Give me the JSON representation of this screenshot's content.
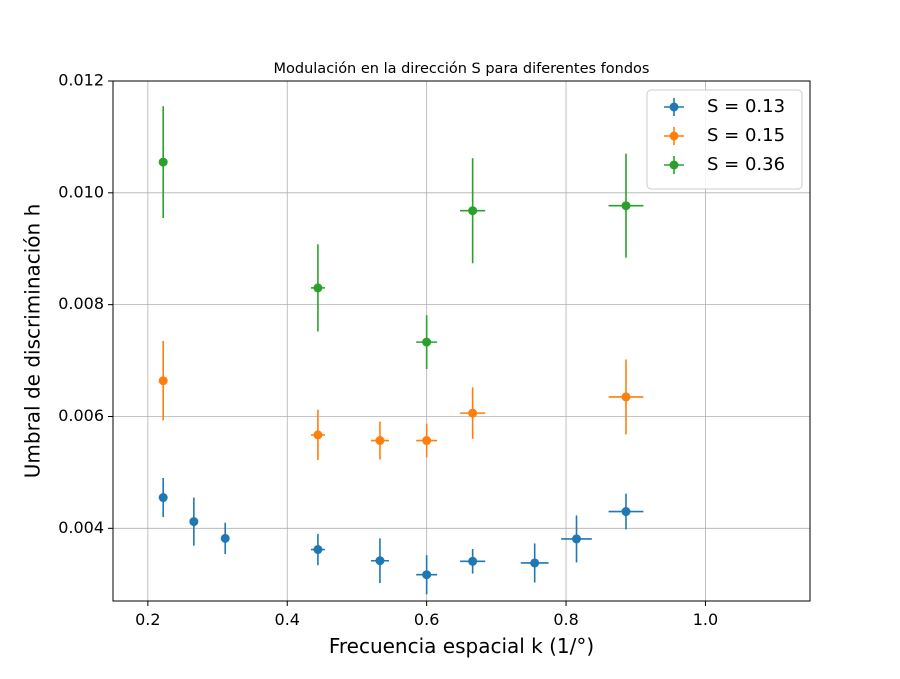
{
  "chart_data": {
    "type": "scatter",
    "title": "Modulación en la dirección S para diferentes fondos",
    "xlabel": "Frecuencia espacial k (1/°)",
    "ylabel": "Umbral de discriminación h",
    "xlim": [
      0.15,
      1.15
    ],
    "ylim": [
      0.0027,
      0.012
    ],
    "xticks": [
      0.2,
      0.4,
      0.6,
      0.8,
      1.0
    ],
    "xtick_labels": [
      "0.2",
      "0.4",
      "0.6",
      "0.8",
      "1.0"
    ],
    "yticks": [
      0.004,
      0.006,
      0.008,
      0.01,
      0.012
    ],
    "ytick_labels": [
      "0.004",
      "0.006",
      "0.008",
      "0.010",
      "0.012"
    ],
    "grid": true,
    "legend_position": "top-right",
    "series": [
      {
        "name": "S = 0.13",
        "color": "#1f77b4",
        "points": [
          {
            "x": 0.222,
            "y": 0.00455,
            "xerr": 0.0,
            "yerr": 0.00035
          },
          {
            "x": 0.266,
            "y": 0.00412,
            "xerr": 0.0,
            "yerr": 0.00043
          },
          {
            "x": 0.311,
            "y": 0.00382,
            "xerr": 0.005,
            "yerr": 0.00028
          },
          {
            "x": 0.444,
            "y": 0.00362,
            "xerr": 0.01,
            "yerr": 0.00028
          },
          {
            "x": 0.533,
            "y": 0.00342,
            "xerr": 0.013,
            "yerr": 0.0004
          },
          {
            "x": 0.6,
            "y": 0.00317,
            "xerr": 0.015,
            "yerr": 0.00035
          },
          {
            "x": 0.666,
            "y": 0.00341,
            "xerr": 0.018,
            "yerr": 0.00022
          },
          {
            "x": 0.755,
            "y": 0.00338,
            "xerr": 0.02,
            "yerr": 0.00035
          },
          {
            "x": 0.815,
            "y": 0.00381,
            "xerr": 0.022,
            "yerr": 0.00042
          },
          {
            "x": 0.886,
            "y": 0.0043,
            "xerr": 0.025,
            "yerr": 0.00032
          }
        ]
      },
      {
        "name": "S = 0.15",
        "color": "#ff7f0e",
        "points": [
          {
            "x": 0.222,
            "y": 0.00664,
            "xerr": 0.0,
            "yerr": 0.00071
          },
          {
            "x": 0.444,
            "y": 0.00567,
            "xerr": 0.01,
            "yerr": 0.00045
          },
          {
            "x": 0.533,
            "y": 0.00557,
            "xerr": 0.013,
            "yerr": 0.00034
          },
          {
            "x": 0.6,
            "y": 0.00557,
            "xerr": 0.015,
            "yerr": 0.0003
          },
          {
            "x": 0.666,
            "y": 0.00606,
            "xerr": 0.018,
            "yerr": 0.00046
          },
          {
            "x": 0.886,
            "y": 0.00635,
            "xerr": 0.025,
            "yerr": 0.00067
          }
        ]
      },
      {
        "name": "S = 0.36",
        "color": "#2ca02c",
        "points": [
          {
            "x": 0.222,
            "y": 0.01055,
            "xerr": 0.0,
            "yerr": 0.001
          },
          {
            "x": 0.444,
            "y": 0.0083,
            "xerr": 0.01,
            "yerr": 0.00078
          },
          {
            "x": 0.6,
            "y": 0.00733,
            "xerr": 0.015,
            "yerr": 0.00048
          },
          {
            "x": 0.666,
            "y": 0.00968,
            "xerr": 0.018,
            "yerr": 0.00094
          },
          {
            "x": 0.886,
            "y": 0.00977,
            "xerr": 0.025,
            "yerr": 0.00093
          }
        ]
      }
    ]
  }
}
